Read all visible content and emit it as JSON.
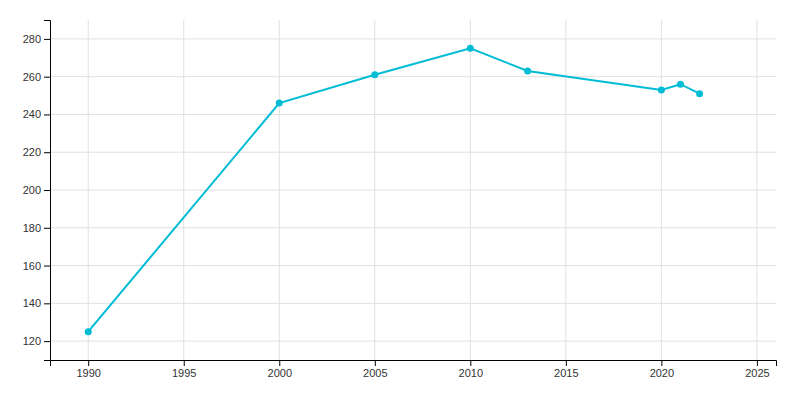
{
  "chart_data": {
    "type": "line",
    "x": [
      1990,
      2000,
      2005,
      2010,
      2013,
      2020,
      2021,
      2022
    ],
    "values": [
      125,
      246,
      261,
      275,
      263,
      253,
      256,
      251
    ],
    "color": "#00bcd4",
    "marker": "circle",
    "xlim": [
      1988,
      2026
    ],
    "ylim": [
      110,
      290
    ],
    "xticks": [
      1990,
      1995,
      2000,
      2005,
      2010,
      2015,
      2020,
      2025
    ],
    "yticks": [
      120,
      140,
      160,
      180,
      200,
      220,
      240,
      260,
      280
    ],
    "grid": true
  }
}
